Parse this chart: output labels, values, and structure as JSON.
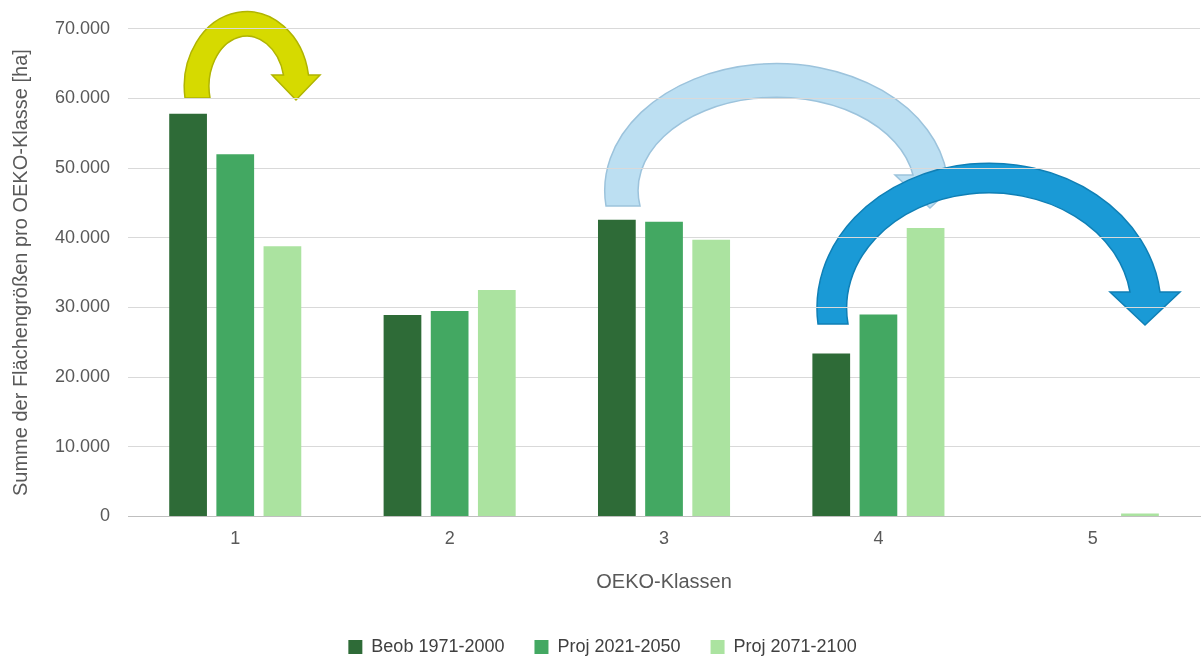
{
  "chart_data": {
    "type": "bar",
    "xlabel": "OEKO-Klassen",
    "ylabel": "Summe der Flächengrößen pro OEKO-Klasse [ha]",
    "categories": [
      "1",
      "2",
      "3",
      "4",
      "5"
    ],
    "series": [
      {
        "name": "Beob 1971-2000",
        "color": "#2e6b37",
        "values": [
          57800,
          28900,
          42600,
          23400,
          0
        ]
      },
      {
        "name": "Proj 2021-2050",
        "color": "#43a862",
        "values": [
          52000,
          29500,
          42300,
          29000,
          0
        ]
      },
      {
        "name": "Proj 2071-2100",
        "color": "#abe3a0",
        "values": [
          38800,
          32500,
          39700,
          41400,
          400
        ]
      }
    ],
    "ylim": [
      0,
      70000
    ],
    "yticks": [
      0,
      {
        "value": 10000,
        "label": "10.000"
      },
      {
        "value": 20000,
        "label": "20.000"
      },
      {
        "value": 30000,
        "label": "30.000"
      },
      {
        "value": 40000,
        "label": "40.000"
      },
      {
        "value": 50000,
        "label": "50.000"
      },
      {
        "value": 60000,
        "label": "60.000"
      },
      {
        "value": 70000,
        "label": "70.000"
      }
    ],
    "grid": "y",
    "legend": "bottom"
  }
}
